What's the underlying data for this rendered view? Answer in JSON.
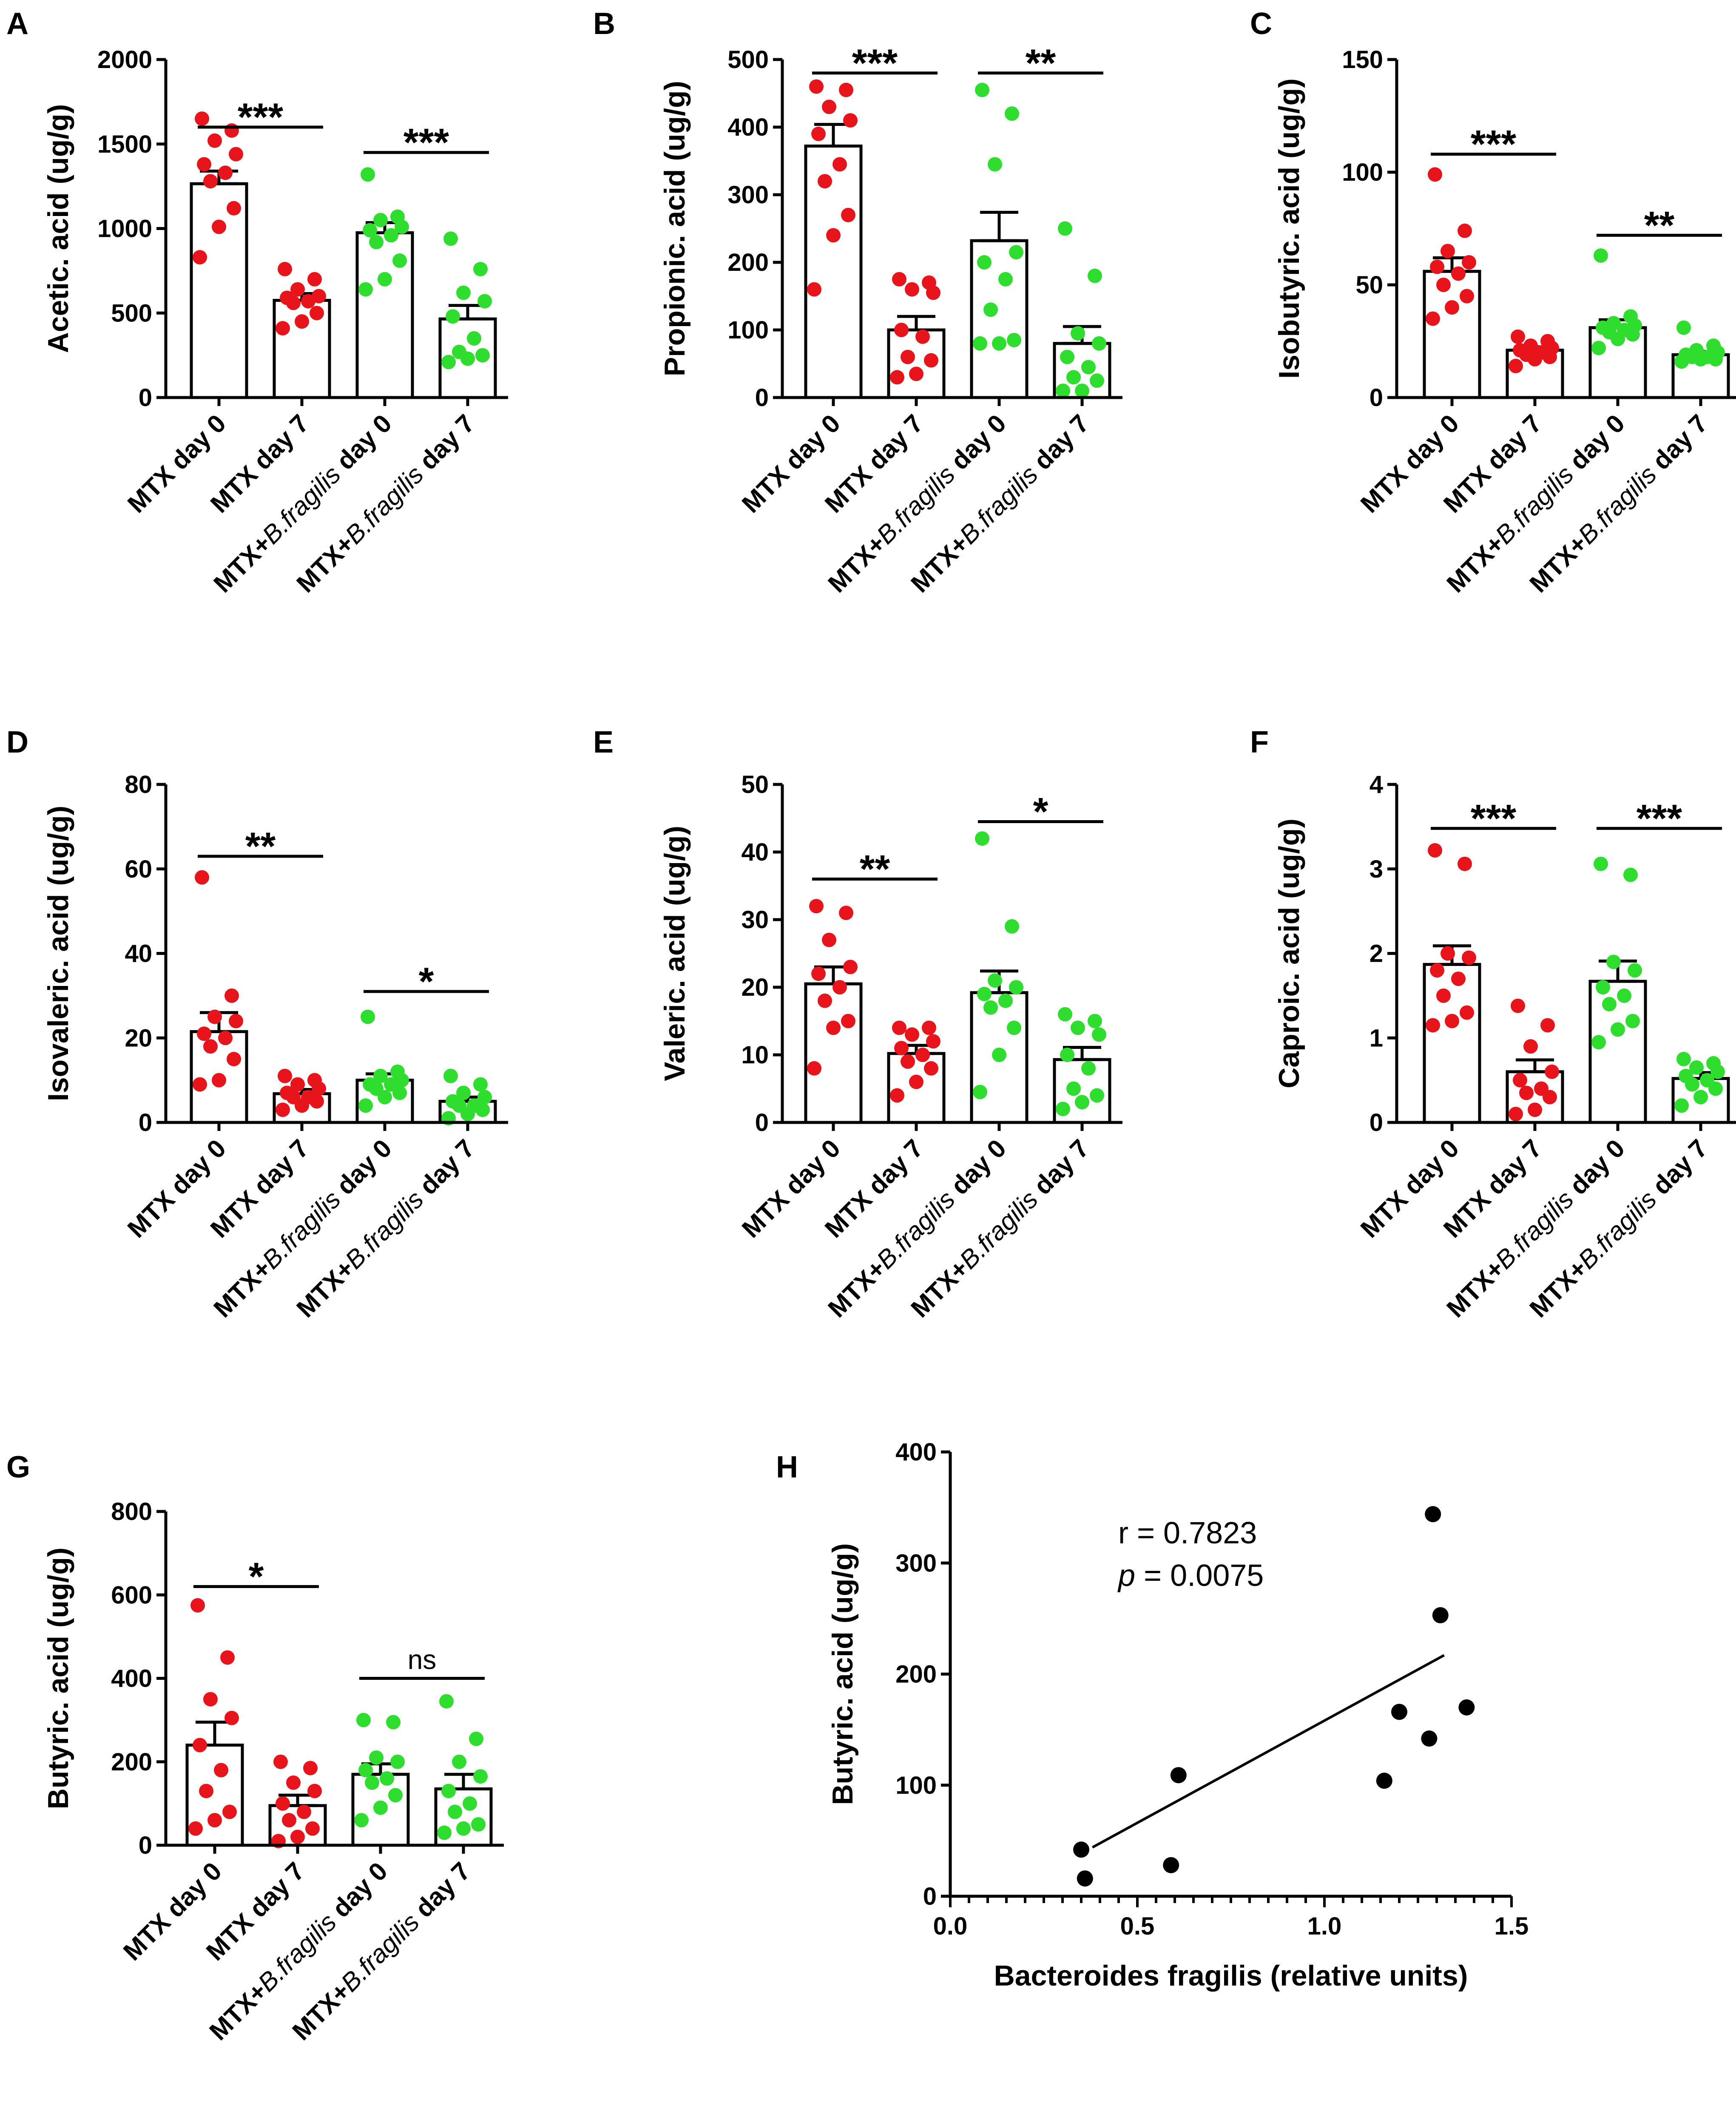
{
  "chart_data": [
    {
      "panel": "A",
      "type": "bar",
      "ylabel": "Acetic. acid (ug/g)",
      "ylim": [
        0,
        2000
      ],
      "yticks": [
        "0",
        "500",
        "1000",
        "1500",
        "2000"
      ],
      "groups": [
        {
          "label": [
            "MTX day 0"
          ],
          "color": "#e8141b",
          "mean": 1265,
          "sem": 75,
          "points": [
            1650,
            1580,
            1520,
            1440,
            1380,
            1330,
            1280,
            1120,
            1010,
            830
          ]
        },
        {
          "label": [
            "MTX day 7"
          ],
          "color": "#e8141b",
          "mean": 575,
          "sem": 40,
          "points": [
            760,
            700,
            640,
            600,
            590,
            570,
            560,
            500,
            450,
            410
          ]
        },
        {
          "label": [
            "MTX+",
            "B.fragilis",
            " day 0"
          ],
          "color": "#2fdd2f",
          "mean": 975,
          "sem": 60,
          "points": [
            1320,
            1070,
            1050,
            1010,
            990,
            960,
            920,
            810,
            700,
            640
          ]
        },
        {
          "label": [
            "MTX+",
            "B.fragilis",
            " day 7"
          ],
          "color": "#2fdd2f",
          "mean": 465,
          "sem": 80,
          "points": [
            940,
            760,
            620,
            570,
            480,
            350,
            270,
            250,
            230,
            210
          ]
        }
      ],
      "brackets": [
        {
          "from": 0,
          "to": 1,
          "value": 1600,
          "label": "***"
        },
        {
          "from": 2,
          "to": 3,
          "value": 1450,
          "label": "***"
        }
      ]
    },
    {
      "panel": "B",
      "type": "bar",
      "ylabel": "Propionic. acid (ug/g)",
      "ylim": [
        0,
        500
      ],
      "yticks": [
        "0",
        "100",
        "200",
        "300",
        "400",
        "500"
      ],
      "groups": [
        {
          "label": [
            "MTX day 0"
          ],
          "color": "#e8141b",
          "mean": 372,
          "sem": 32,
          "points": [
            460,
            455,
            430,
            410,
            390,
            345,
            320,
            270,
            240,
            160
          ]
        },
        {
          "label": [
            "MTX day 7"
          ],
          "color": "#e8141b",
          "mean": 100,
          "sem": 20,
          "points": [
            175,
            170,
            160,
            155,
            100,
            90,
            60,
            55,
            35,
            30
          ]
        },
        {
          "label": [
            "MTX+",
            "B.fragilis",
            " day 0"
          ],
          "color": "#2fdd2f",
          "mean": 232,
          "sem": 42,
          "points": [
            455,
            420,
            345,
            215,
            200,
            175,
            130,
            85,
            80,
            80
          ]
        },
        {
          "label": [
            "MTX+",
            "B.fragilis",
            " day 7"
          ],
          "color": "#2fdd2f",
          "mean": 80,
          "sem": 25,
          "points": [
            250,
            180,
            95,
            80,
            60,
            45,
            30,
            25,
            10,
            10
          ]
        }
      ],
      "brackets": [
        {
          "from": 0,
          "to": 1,
          "value": 480,
          "label": "***"
        },
        {
          "from": 2,
          "to": 3,
          "value": 480,
          "label": "**"
        }
      ]
    },
    {
      "panel": "C",
      "type": "bar",
      "ylabel": "Isobutyric. acid (ug/g)",
      "ylim": [
        0,
        150
      ],
      "yticks": [
        "0",
        "50",
        "100",
        "150"
      ],
      "groups": [
        {
          "label": [
            "MTX day 0"
          ],
          "color": "#e8141b",
          "mean": 56,
          "sem": 6,
          "points": [
            99,
            74,
            65,
            60,
            58,
            55,
            50,
            45,
            40,
            35
          ]
        },
        {
          "label": [
            "MTX day 7"
          ],
          "color": "#e8141b",
          "mean": 21,
          "sem": 1.5,
          "points": [
            27,
            25,
            23,
            22,
            21,
            20,
            19,
            18,
            17,
            14
          ]
        },
        {
          "label": [
            "MTX+",
            "B.fragilis",
            " day 0"
          ],
          "color": "#2fdd2f",
          "mean": 31,
          "sem": 3.5,
          "points": [
            63,
            36,
            33,
            32,
            31,
            30,
            29,
            28,
            26,
            22
          ]
        },
        {
          "label": [
            "MTX+",
            "B.fragilis",
            " day 7"
          ],
          "color": "#2fdd2f",
          "mean": 19,
          "sem": 1.5,
          "points": [
            31,
            23,
            21,
            20,
            19,
            18,
            18,
            17,
            17,
            16
          ]
        }
      ],
      "brackets": [
        {
          "from": 0,
          "to": 1,
          "value": 108,
          "label": "***"
        },
        {
          "from": 2,
          "to": 3,
          "value": 72,
          "label": "**"
        }
      ]
    },
    {
      "panel": "D",
      "type": "bar",
      "ylabel": "Isovaleric. acid (ug/g)",
      "ylim": [
        0,
        80
      ],
      "yticks": [
        "0",
        "20",
        "40",
        "60",
        "80"
      ],
      "groups": [
        {
          "label": [
            "MTX day 0"
          ],
          "color": "#e8141b",
          "mean": 21.5,
          "sem": 4.5,
          "points": [
            58,
            30,
            25,
            24,
            21,
            20,
            18,
            15,
            10,
            9
          ]
        },
        {
          "label": [
            "MTX day 7"
          ],
          "color": "#e8141b",
          "mean": 6.8,
          "sem": 1.0,
          "points": [
            11,
            10,
            9,
            8,
            7,
            6,
            6,
            5,
            4,
            3
          ]
        },
        {
          "label": [
            "MTX+",
            "B.fragilis",
            " day 0"
          ],
          "color": "#2fdd2f",
          "mean": 10,
          "sem": 1.5,
          "points": [
            25,
            12,
            11,
            10,
            9,
            9,
            8,
            7,
            6,
            4
          ]
        },
        {
          "label": [
            "MTX+",
            "B.fragilis",
            " day 7"
          ],
          "color": "#2fdd2f",
          "mean": 5,
          "sem": 1.0,
          "points": [
            11,
            9,
            7,
            6,
            5,
            4,
            4,
            3,
            2,
            1
          ]
        }
      ],
      "brackets": [
        {
          "from": 0,
          "to": 1,
          "value": 63,
          "label": "**"
        },
        {
          "from": 2,
          "to": 3,
          "value": 31,
          "label": "*"
        }
      ]
    },
    {
      "panel": "E",
      "type": "bar",
      "ylabel": "Valeric. acid (ug/g)",
      "ylim": [
        0,
        50
      ],
      "yticks": [
        "0",
        "10",
        "20",
        "30",
        "40",
        "50"
      ],
      "groups": [
        {
          "label": [
            "MTX day 0"
          ],
          "color": "#e8141b",
          "mean": 20.5,
          "sem": 2.5,
          "points": [
            32,
            31,
            27,
            23,
            22,
            20,
            18,
            15,
            14,
            8
          ]
        },
        {
          "label": [
            "MTX day 7"
          ],
          "color": "#e8141b",
          "mean": 10.2,
          "sem": 1.2,
          "points": [
            14,
            14,
            13,
            12,
            11,
            10,
            9,
            8,
            6,
            4
          ]
        },
        {
          "label": [
            "MTX+",
            "B.fragilis",
            " day 0"
          ],
          "color": "#2fdd2f",
          "mean": 19.2,
          "sem": 3.2,
          "points": [
            42,
            29,
            21,
            20,
            19,
            18,
            17,
            14,
            10,
            4.5
          ]
        },
        {
          "label": [
            "MTX+",
            "B.fragilis",
            " day 7"
          ],
          "color": "#2fdd2f",
          "mean": 9.3,
          "sem": 1.8,
          "points": [
            16,
            15,
            14,
            13,
            10,
            8,
            5,
            4,
            3,
            2
          ]
        }
      ],
      "brackets": [
        {
          "from": 0,
          "to": 1,
          "value": 36,
          "label": "**"
        },
        {
          "from": 2,
          "to": 3,
          "value": 44.5,
          "label": "*"
        }
      ]
    },
    {
      "panel": "F",
      "type": "bar",
      "ylabel": "Caproic. acid (ug/g)",
      "ylim": [
        0,
        4
      ],
      "yticks": [
        "0",
        "1",
        "2",
        "3",
        "4"
      ],
      "groups": [
        {
          "label": [
            "MTX day 0"
          ],
          "color": "#e8141b",
          "mean": 1.87,
          "sem": 0.22,
          "points": [
            3.22,
            3.06,
            2.0,
            1.95,
            1.8,
            1.7,
            1.5,
            1.3,
            1.2,
            1.15
          ]
        },
        {
          "label": [
            "MTX day 7"
          ],
          "color": "#e8141b",
          "mean": 0.6,
          "sem": 0.14,
          "points": [
            1.38,
            1.15,
            0.9,
            0.6,
            0.5,
            0.4,
            0.35,
            0.3,
            0.15,
            0.1
          ]
        },
        {
          "label": [
            "MTX+",
            "B.fragilis",
            " day 0"
          ],
          "color": "#2fdd2f",
          "mean": 1.67,
          "sem": 0.24,
          "points": [
            3.06,
            2.93,
            1.9,
            1.8,
            1.6,
            1.5,
            1.4,
            1.2,
            1.1,
            0.95
          ]
        },
        {
          "label": [
            "MTX+",
            "B.fragilis",
            " day 7"
          ],
          "color": "#2fdd2f",
          "mean": 0.52,
          "sem": 0.07,
          "points": [
            0.75,
            0.7,
            0.65,
            0.6,
            0.55,
            0.5,
            0.45,
            0.4,
            0.3,
            0.2
          ]
        }
      ],
      "brackets": [
        {
          "from": 0,
          "to": 1,
          "value": 3.48,
          "label": "***"
        },
        {
          "from": 2,
          "to": 3,
          "value": 3.48,
          "label": "***"
        }
      ]
    },
    {
      "panel": "G",
      "type": "bar",
      "ylabel": "Butyric. acid (ug/g)",
      "ylim": [
        0,
        800
      ],
      "yticks": [
        "0",
        "200",
        "400",
        "600",
        "800"
      ],
      "groups": [
        {
          "label": [
            "MTX day 0"
          ],
          "color": "#e8141b",
          "mean": 240,
          "sem": 55,
          "points": [
            575,
            450,
            350,
            305,
            240,
            180,
            130,
            80,
            60,
            40
          ]
        },
        {
          "label": [
            "MTX day 7"
          ],
          "color": "#e8141b",
          "mean": 95,
          "sem": 25,
          "points": [
            200,
            185,
            150,
            130,
            100,
            80,
            60,
            40,
            20,
            10
          ]
        },
        {
          "label": [
            "MTX+",
            "B.fragilis",
            " day 0"
          ],
          "color": "#2fdd2f",
          "mean": 170,
          "sem": 25,
          "points": [
            300,
            295,
            210,
            200,
            180,
            160,
            150,
            120,
            90,
            60
          ]
        },
        {
          "label": [
            "MTX+",
            "B.fragilis",
            " day 7"
          ],
          "color": "#2fdd2f",
          "mean": 135,
          "sem": 35,
          "points": [
            345,
            255,
            200,
            165,
            130,
            100,
            80,
            50,
            40,
            30
          ]
        }
      ],
      "brackets": [
        {
          "from": 0,
          "to": 1,
          "value": 620,
          "label": "*"
        },
        {
          "from": 2,
          "to": 3,
          "value": 400,
          "label": "ns"
        }
      ]
    },
    {
      "panel": "H",
      "type": "scatter",
      "ylabel": "Butyric. acid (ug/g)",
      "xlabel": "Bacteroides fragilis (relative units)",
      "xlim": [
        0,
        1.5
      ],
      "ylim": [
        0,
        400
      ],
      "xticks": [
        "0.0",
        "0.5",
        "1.0",
        "1.5"
      ],
      "yticks": [
        "0",
        "100",
        "200",
        "300",
        "400"
      ],
      "points": [
        {
          "x": 0.35,
          "y": 42
        },
        {
          "x": 0.36,
          "y": 16
        },
        {
          "x": 0.59,
          "y": 28
        },
        {
          "x": 0.61,
          "y": 109
        },
        {
          "x": 1.16,
          "y": 104
        },
        {
          "x": 1.2,
          "y": 166
        },
        {
          "x": 1.28,
          "y": 142
        },
        {
          "x": 1.29,
          "y": 344
        },
        {
          "x": 1.31,
          "y": 253
        },
        {
          "x": 1.38,
          "y": 170
        }
      ],
      "fit": {
        "x1": 0.38,
        "y1": 44,
        "x2": 1.32,
        "y2": 217
      },
      "annotation_r": "r = 0.7823",
      "annotation_p_symbol": "p",
      "annotation_p_value": " = 0.0075"
    }
  ]
}
